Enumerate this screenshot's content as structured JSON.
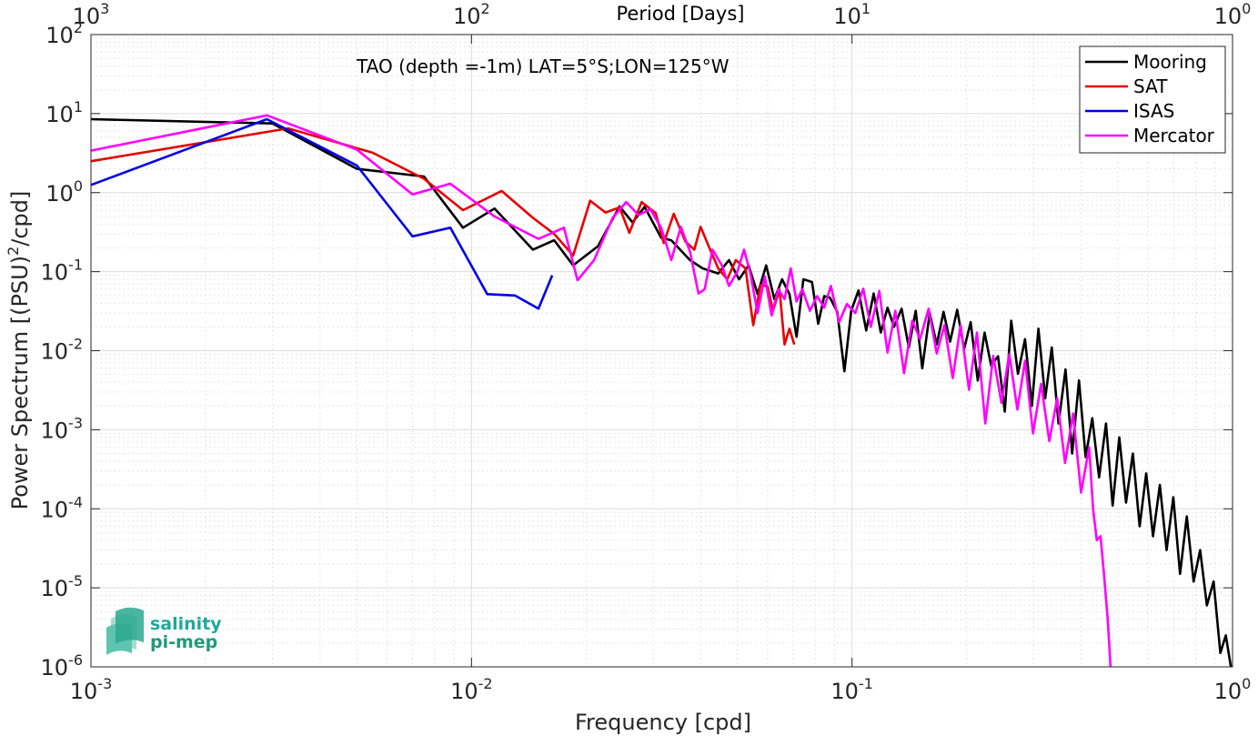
{
  "chart_data": {
    "type": "line",
    "title": "TAO (depth =-1m) LAT=5°S;LON=125°W",
    "xlabel": "Frequency [cpd]",
    "ylabel": "Power Spectrum [(PSU)",
    "ylabel_sup": "2",
    "ylabel_tail": "/cpd]",
    "top_xlabel": "Period [Days]",
    "xscale": "log",
    "yscale": "log",
    "xlim": [
      0.001,
      1
    ],
    "ylim": [
      1e-06,
      100
    ],
    "grid": true,
    "legend_position": "top-right",
    "x_ticks": [
      {
        "base": "10",
        "exp": "-3"
      },
      {
        "base": "10",
        "exp": "-2"
      },
      {
        "base": "10",
        "exp": "-1"
      },
      {
        "base": "10",
        "exp": "0"
      }
    ],
    "top_ticks": [
      {
        "base": "10",
        "exp": "3"
      },
      {
        "base": "10",
        "exp": "2"
      },
      {
        "base": "10",
        "exp": "1"
      },
      {
        "base": "10",
        "exp": "0"
      }
    ],
    "y_ticks": [
      {
        "base": "10",
        "exp": "2"
      },
      {
        "base": "10",
        "exp": "1"
      },
      {
        "base": "10",
        "exp": "0"
      },
      {
        "base": "10",
        "exp": "-1"
      },
      {
        "base": "10",
        "exp": "-2"
      },
      {
        "base": "10",
        "exp": "-3"
      },
      {
        "base": "10",
        "exp": "-4"
      },
      {
        "base": "10",
        "exp": "-5"
      },
      {
        "base": "10",
        "exp": "-6"
      }
    ],
    "series": [
      {
        "name": "Mooring",
        "color": "#000000",
        "points": [
          [
            0.001,
            8.5
          ],
          [
            0.003,
            7.5
          ],
          [
            0.005,
            2.0
          ],
          [
            0.0075,
            1.6
          ],
          [
            0.0095,
            0.36
          ],
          [
            0.0115,
            0.63
          ],
          [
            0.0145,
            0.19
          ],
          [
            0.0165,
            0.25
          ],
          [
            0.0185,
            0.12
          ],
          [
            0.0215,
            0.21
          ],
          [
            0.0245,
            0.67
          ],
          [
            0.0265,
            0.42
          ],
          [
            0.0285,
            0.66
          ],
          [
            0.0315,
            0.27
          ],
          [
            0.0335,
            0.25
          ],
          [
            0.0375,
            0.14
          ],
          [
            0.0405,
            0.11
          ],
          [
            0.0445,
            0.095
          ],
          [
            0.0475,
            0.14
          ],
          [
            0.0505,
            0.08
          ],
          [
            0.0535,
            0.12
          ],
          [
            0.0565,
            0.052
          ],
          [
            0.0595,
            0.12
          ],
          [
            0.0625,
            0.045
          ],
          [
            0.0655,
            0.08
          ],
          [
            0.0685,
            0.052
          ],
          [
            0.0715,
            0.015
          ],
          [
            0.0745,
            0.08
          ],
          [
            0.0785,
            0.074
          ],
          [
            0.0815,
            0.022
          ],
          [
            0.0845,
            0.049
          ],
          [
            0.0875,
            0.047
          ],
          [
            0.0915,
            0.031
          ],
          [
            0.0955,
            0.0055
          ],
          [
            0.0995,
            0.032
          ],
          [
            0.104,
            0.058
          ],
          [
            0.109,
            0.018
          ],
          [
            0.114,
            0.053
          ],
          [
            0.119,
            0.017
          ],
          [
            0.124,
            0.035
          ],
          [
            0.129,
            0.02
          ],
          [
            0.135,
            0.034
          ],
          [
            0.141,
            0.011
          ],
          [
            0.147,
            0.032
          ],
          [
            0.153,
            0.006
          ],
          [
            0.16,
            0.03
          ],
          [
            0.167,
            0.012
          ],
          [
            0.174,
            0.031
          ],
          [
            0.181,
            0.013
          ],
          [
            0.189,
            0.033
          ],
          [
            0.197,
            0.0105
          ],
          [
            0.205,
            0.023
          ],
          [
            0.214,
            0.0042
          ],
          [
            0.223,
            0.017
          ],
          [
            0.232,
            0.0065
          ],
          [
            0.242,
            0.0085
          ],
          [
            0.252,
            0.0017
          ],
          [
            0.262,
            0.024
          ],
          [
            0.273,
            0.0051
          ],
          [
            0.285,
            0.014
          ],
          [
            0.297,
            0.002
          ],
          [
            0.309,
            0.019
          ],
          [
            0.322,
            0.0025
          ],
          [
            0.335,
            0.011
          ],
          [
            0.349,
            0.0012
          ],
          [
            0.364,
            0.0058
          ],
          [
            0.379,
            0.0005
          ],
          [
            0.395,
            0.0042
          ],
          [
            0.411,
            0.00045
          ],
          [
            0.428,
            0.0014
          ],
          [
            0.446,
            0.00025
          ],
          [
            0.465,
            0.0012
          ],
          [
            0.484,
            0.00011
          ],
          [
            0.504,
            0.0008
          ],
          [
            0.525,
            0.00012
          ],
          [
            0.547,
            0.0005
          ],
          [
            0.57,
            6e-05
          ],
          [
            0.593,
            0.00028
          ],
          [
            0.618,
            4.5e-05
          ],
          [
            0.644,
            0.0002
          ],
          [
            0.671,
            3e-05
          ],
          [
            0.699,
            0.00014
          ],
          [
            0.728,
            1.5e-05
          ],
          [
            0.758,
            8e-05
          ],
          [
            0.79,
            1.2e-05
          ],
          [
            0.822,
            3e-05
          ],
          [
            0.856,
            6e-06
          ],
          [
            0.892,
            1.2e-05
          ],
          [
            0.929,
            1.5e-06
          ],
          [
            0.96,
            2.5e-06
          ],
          [
            0.99,
            1e-06
          ]
        ]
      },
      {
        "name": "SAT",
        "color": "#e60000",
        "points": [
          [
            0.001,
            2.5
          ],
          [
            0.0033,
            6.5
          ],
          [
            0.0055,
            3.2
          ],
          [
            0.0075,
            1.5
          ],
          [
            0.0095,
            0.6
          ],
          [
            0.012,
            1.05
          ],
          [
            0.0145,
            0.48
          ],
          [
            0.0165,
            0.3
          ],
          [
            0.0185,
            0.16
          ],
          [
            0.0205,
            0.79
          ],
          [
            0.0225,
            0.56
          ],
          [
            0.0245,
            0.65
          ],
          [
            0.026,
            0.31
          ],
          [
            0.028,
            0.76
          ],
          [
            0.0305,
            0.55
          ],
          [
            0.032,
            0.23
          ],
          [
            0.034,
            0.54
          ],
          [
            0.0365,
            0.24
          ],
          [
            0.0385,
            0.19
          ],
          [
            0.04,
            0.37
          ],
          [
            0.042,
            0.21
          ],
          [
            0.0445,
            0.11
          ],
          [
            0.047,
            0.08
          ],
          [
            0.0495,
            0.14
          ],
          [
            0.0525,
            0.11
          ],
          [
            0.055,
            0.021
          ],
          [
            0.0575,
            0.068
          ],
          [
            0.06,
            0.065
          ],
          [
            0.062,
            0.032
          ],
          [
            0.0645,
            0.059
          ],
          [
            0.0665,
            0.012
          ],
          [
            0.0685,
            0.019
          ],
          [
            0.0705,
            0.012
          ]
        ]
      },
      {
        "name": "ISAS",
        "color": "#0000e6",
        "points": [
          [
            0.001,
            1.25
          ],
          [
            0.0029,
            8.5
          ],
          [
            0.005,
            2.2
          ],
          [
            0.007,
            0.28
          ],
          [
            0.0088,
            0.36
          ],
          [
            0.011,
            0.052
          ],
          [
            0.013,
            0.05
          ],
          [
            0.015,
            0.034
          ],
          [
            0.0163,
            0.09
          ]
        ]
      },
      {
        "name": "Mercator",
        "color": "#ff00ff",
        "points": [
          [
            0.001,
            3.4
          ],
          [
            0.0029,
            9.5
          ],
          [
            0.005,
            3.5
          ],
          [
            0.007,
            0.95
          ],
          [
            0.0088,
            1.3
          ],
          [
            0.0115,
            0.5
          ],
          [
            0.015,
            0.26
          ],
          [
            0.0175,
            0.36
          ],
          [
            0.019,
            0.078
          ],
          [
            0.021,
            0.14
          ],
          [
            0.0235,
            0.48
          ],
          [
            0.0255,
            0.76
          ],
          [
            0.0275,
            0.52
          ],
          [
            0.0295,
            0.62
          ],
          [
            0.0315,
            0.36
          ],
          [
            0.0335,
            0.14
          ],
          [
            0.0355,
            0.37
          ],
          [
            0.0375,
            0.18
          ],
          [
            0.0395,
            0.053
          ],
          [
            0.041,
            0.06
          ],
          [
            0.043,
            0.19
          ],
          [
            0.0455,
            0.12
          ],
          [
            0.0475,
            0.066
          ],
          [
            0.05,
            0.1
          ],
          [
            0.052,
            0.19
          ],
          [
            0.054,
            0.098
          ],
          [
            0.0565,
            0.03
          ],
          [
            0.059,
            0.087
          ],
          [
            0.0615,
            0.028
          ],
          [
            0.064,
            0.06
          ],
          [
            0.0665,
            0.045
          ],
          [
            0.069,
            0.11
          ],
          [
            0.0715,
            0.042
          ],
          [
            0.074,
            0.06
          ],
          [
            0.0775,
            0.032
          ],
          [
            0.081,
            0.049
          ],
          [
            0.0845,
            0.035
          ],
          [
            0.088,
            0.066
          ],
          [
            0.0925,
            0.023
          ],
          [
            0.097,
            0.039
          ],
          [
            0.102,
            0.03
          ],
          [
            0.107,
            0.061
          ],
          [
            0.112,
            0.02
          ],
          [
            0.118,
            0.057
          ],
          [
            0.124,
            0.0095
          ],
          [
            0.13,
            0.032
          ],
          [
            0.137,
            0.0052
          ],
          [
            0.144,
            0.024
          ],
          [
            0.151,
            0.014
          ],
          [
            0.159,
            0.034
          ],
          [
            0.167,
            0.0092
          ],
          [
            0.175,
            0.021
          ],
          [
            0.184,
            0.0045
          ],
          [
            0.193,
            0.021
          ],
          [
            0.203,
            0.0032
          ],
          [
            0.213,
            0.017
          ],
          [
            0.224,
            0.0012
          ],
          [
            0.235,
            0.0086
          ],
          [
            0.247,
            0.0022
          ],
          [
            0.259,
            0.009
          ],
          [
            0.272,
            0.0018
          ],
          [
            0.285,
            0.0075
          ],
          [
            0.299,
            0.0009
          ],
          [
            0.314,
            0.0038
          ],
          [
            0.33,
            0.00072
          ],
          [
            0.346,
            0.0025
          ],
          [
            0.363,
            0.00038
          ],
          [
            0.381,
            0.0016
          ],
          [
            0.4,
            0.00016
          ],
          [
            0.42,
            0.0006
          ],
          [
            0.43,
            0.0001
          ],
          [
            0.44,
            4e-05
          ],
          [
            0.45,
            4.5e-05
          ],
          [
            0.46,
            1.4e-05
          ],
          [
            0.47,
            4e-06
          ],
          [
            0.478,
            1e-06
          ]
        ]
      }
    ]
  },
  "logo": {
    "line1": "salinity",
    "line2": "pi-mep",
    "color": "#1fa89a"
  }
}
